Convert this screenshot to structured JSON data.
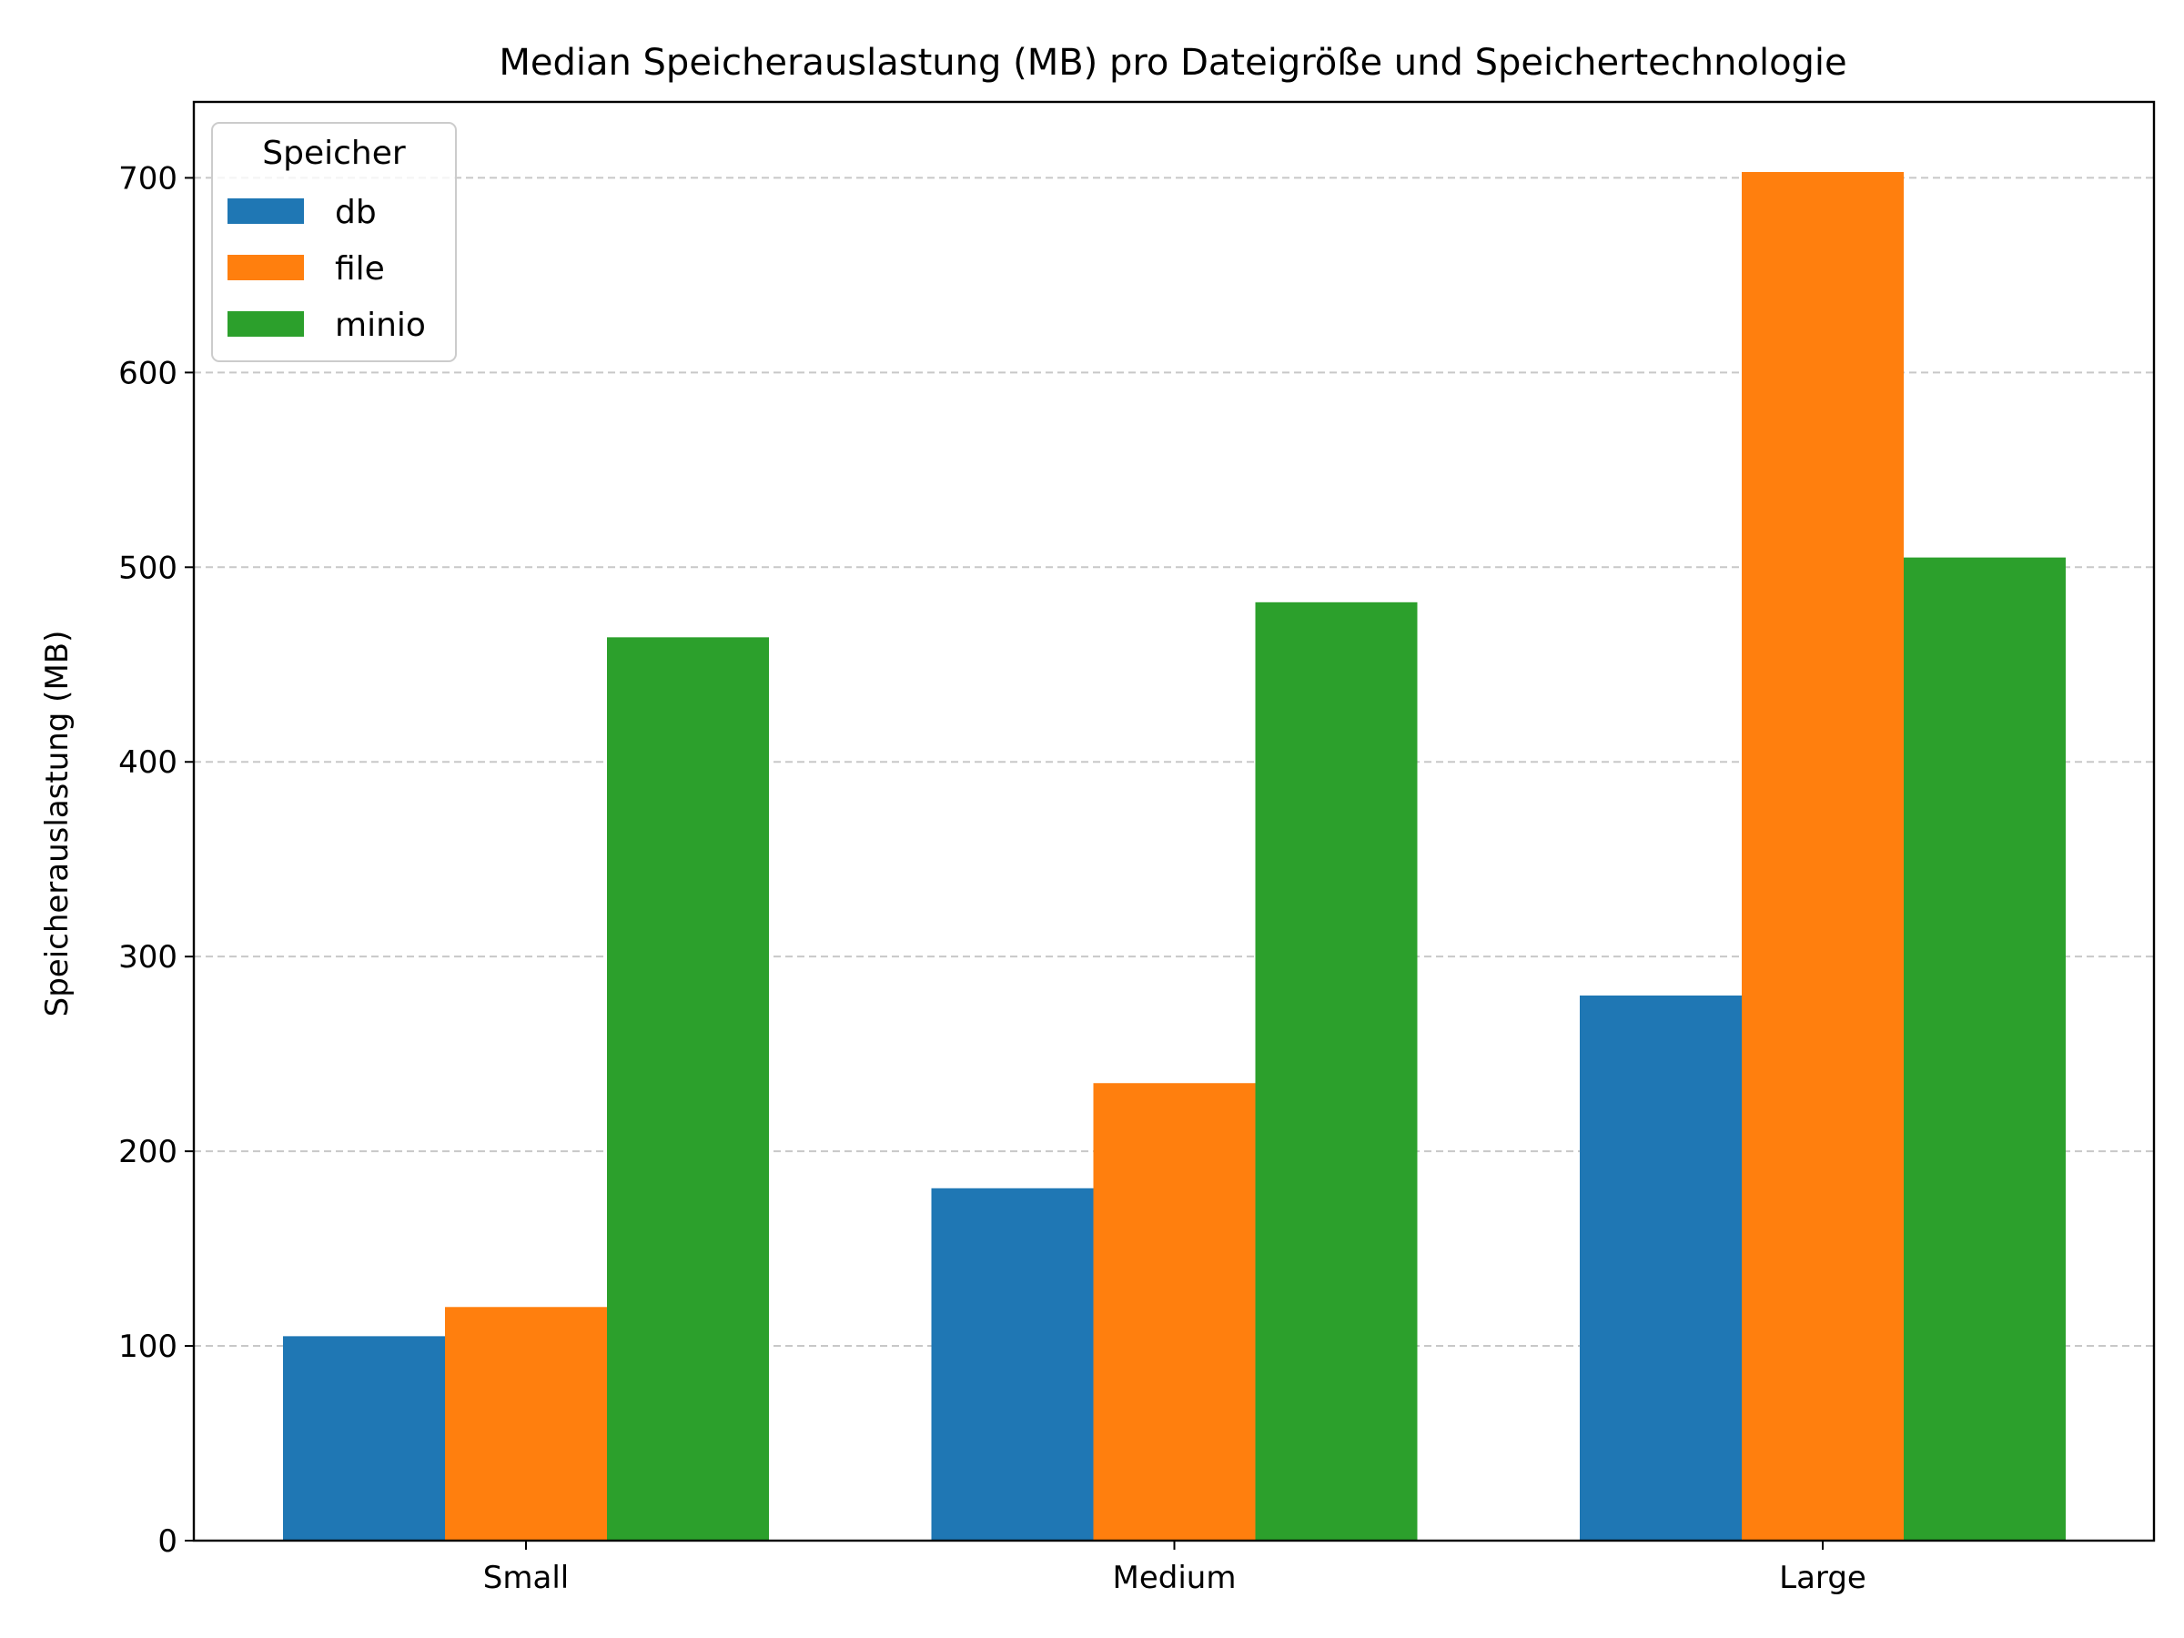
{
  "chart_data": {
    "type": "bar",
    "title": "Median Speicherauslastung (MB) pro Dateigröße und Speichertechnologie",
    "xlabel": "",
    "ylabel": "Speicherauslastung (MB)",
    "categories": [
      "Small",
      "Medium",
      "Large"
    ],
    "series": [
      {
        "name": "db",
        "color": "#1f77b4",
        "values": [
          105,
          181,
          280
        ]
      },
      {
        "name": "file",
        "color": "#ff7f0e",
        "values": [
          120,
          235,
          703
        ]
      },
      {
        "name": "minio",
        "color": "#2ca02c",
        "values": [
          464,
          482,
          505
        ]
      }
    ],
    "ylim": [
      0,
      739
    ],
    "yticks": [
      0,
      100,
      200,
      300,
      400,
      500,
      600,
      700
    ],
    "grid": "y-dashed",
    "legend": {
      "title": "Speicher",
      "placement": "top-left"
    }
  }
}
